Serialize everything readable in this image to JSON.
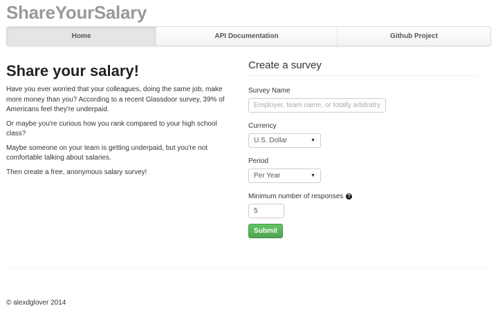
{
  "brand": "ShareYourSalary",
  "nav": [
    "Home",
    "API Documentation",
    "Github Project"
  ],
  "intro": {
    "title": "Share your salary!",
    "paragraphs": [
      "Have you ever worried that your colleagues, doing the same job, make more money than you? According to a recent Glassdoor survey, 39% of Americans feel they're underpaid.",
      "Or maybe you're curious how you rank compared to your high school class?",
      "Maybe someone on your team is getting underpaid, but you're not comfortable talking about salaries.",
      "Then create a free, anonymous salary survey!"
    ]
  },
  "form": {
    "title": "Create a survey",
    "survey_name_label": "Survey Name",
    "survey_name_placeholder": "Employer, team name, or totally arbitratry",
    "survey_name_value": "",
    "currency_label": "Currency",
    "currency_value": "U.S. Dollar",
    "period_label": "Period",
    "period_value": "Per Year",
    "min_label": "Minimum number of responses",
    "min_value": "5",
    "submit": "Submit",
    "help_icon": "question-circle-icon"
  },
  "footer": "© alexdglover 2014"
}
